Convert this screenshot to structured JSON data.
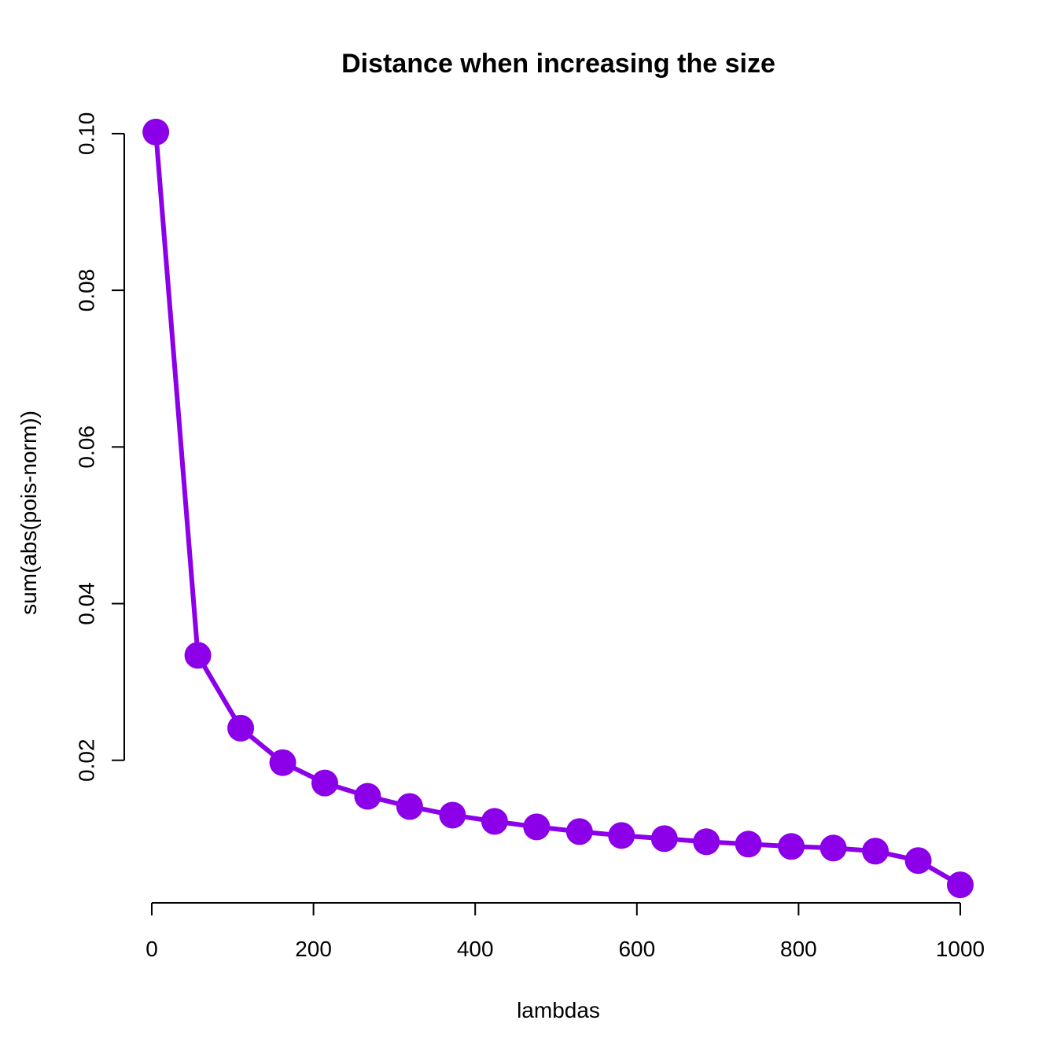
{
  "chart_data": {
    "type": "line",
    "title": "Distance when increasing the size",
    "xlabel": "lambdas",
    "ylabel": "sum(abs(pois-norm))",
    "xlim": [
      0,
      1000
    ],
    "ylim": [
      0.0018,
      0.102
    ],
    "x_ticks": [
      0,
      200,
      400,
      600,
      800,
      1000
    ],
    "x_tick_labels": [
      "0",
      "200",
      "400",
      "600",
      "800",
      "1000"
    ],
    "y_ticks": [
      0.02,
      0.04,
      0.06,
      0.08,
      0.1
    ],
    "y_tick_labels": [
      "0.02",
      "0.04",
      "0.06",
      "0.08",
      "0.10"
    ],
    "grid": false,
    "color": "#8B00E8",
    "markers": "filled-circle",
    "series": [
      {
        "x": [
          5,
          57,
          110,
          162,
          214,
          267,
          319,
          372,
          424,
          476,
          529,
          581,
          634,
          686,
          738,
          791,
          843,
          895,
          948,
          1000
        ],
        "y": [
          0.1002,
          0.0334,
          0.0241,
          0.0197,
          0.0171,
          0.0154,
          0.0141,
          0.013,
          0.0122,
          0.0115,
          0.0109,
          0.0104,
          0.01,
          0.0096,
          0.0093,
          0.009,
          0.0088,
          0.0084,
          0.0072,
          0.0041
        ]
      }
    ]
  }
}
